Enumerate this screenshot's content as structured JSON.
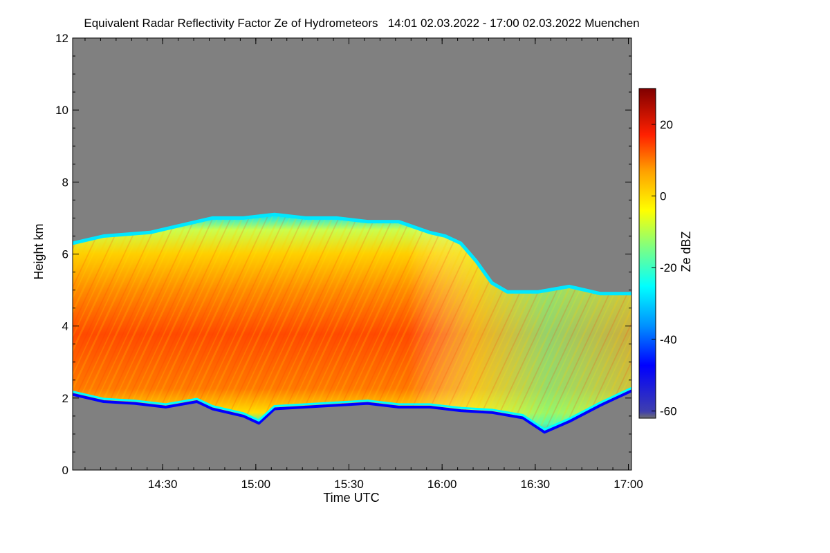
{
  "chart_data": {
    "type": "heatmap",
    "title": "Equivalent Radar Reflectivity Factor Ze of Hydrometeors   14:01 02.03.2022 - 17:00 02.03.2022 Muenchen",
    "xlabel": "Time UTC",
    "ylabel": "Height km",
    "colorbar_label": "Ze dBZ",
    "x_range": [
      "14:01",
      "17:00"
    ],
    "xlim_minutes": [
      0,
      180
    ],
    "x_tick_labels": [
      "14:30",
      "15:00",
      "15:30",
      "16:00",
      "16:30",
      "17:00"
    ],
    "x_tick_minutes": [
      29,
      59,
      89,
      119,
      149,
      179
    ],
    "ylim": [
      0,
      12
    ],
    "y_ticks": [
      0,
      2,
      4,
      6,
      8,
      10,
      12
    ],
    "colorbar_range": [
      -62,
      30
    ],
    "colorbar_ticks": [
      20,
      0,
      -20,
      -40,
      -60
    ],
    "background_color": "#808080",
    "colormap": [
      "#666666",
      "#0000ff",
      "#00ffff",
      "#ffff00",
      "#ff8800",
      "#ff0000",
      "#880000"
    ],
    "cloud_top_km": [
      [
        0,
        6.3
      ],
      [
        10,
        6.5
      ],
      [
        25,
        6.6
      ],
      [
        35,
        6.8
      ],
      [
        45,
        7.0
      ],
      [
        55,
        7.0
      ],
      [
        65,
        7.1
      ],
      [
        75,
        7.0
      ],
      [
        85,
        7.0
      ],
      [
        95,
        6.9
      ],
      [
        105,
        6.9
      ],
      [
        115,
        6.6
      ],
      [
        120,
        6.5
      ],
      [
        125,
        6.3
      ],
      [
        130,
        5.8
      ],
      [
        135,
        5.2
      ],
      [
        140,
        4.95
      ],
      [
        150,
        4.95
      ],
      [
        160,
        5.1
      ],
      [
        170,
        4.9
      ],
      [
        180,
        4.9
      ]
    ],
    "cloud_base_km": [
      [
        0,
        2.1
      ],
      [
        10,
        1.9
      ],
      [
        20,
        1.85
      ],
      [
        30,
        1.75
      ],
      [
        40,
        1.9
      ],
      [
        45,
        1.7
      ],
      [
        55,
        1.5
      ],
      [
        60,
        1.3
      ],
      [
        65,
        1.7
      ],
      [
        75,
        1.75
      ],
      [
        85,
        1.8
      ],
      [
        95,
        1.85
      ],
      [
        105,
        1.75
      ],
      [
        115,
        1.75
      ],
      [
        125,
        1.65
      ],
      [
        135,
        1.6
      ],
      [
        145,
        1.45
      ],
      [
        152,
        1.05
      ],
      [
        160,
        1.35
      ],
      [
        170,
        1.8
      ],
      [
        180,
        2.2
      ]
    ]
  }
}
